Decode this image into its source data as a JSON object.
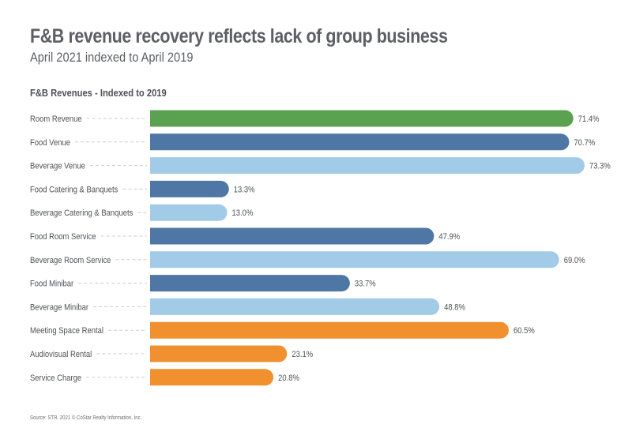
{
  "header": {
    "title": "F&B revenue recovery reflects lack of group business",
    "subtitle": "April 2021 indexed to April 2019"
  },
  "footer": {
    "source": "Source: STR. 2021 © CoStar Realty Information, Inc."
  },
  "colors": {
    "green": "#5aa150",
    "dark_blue": "#4e77a5",
    "light_blue": "#a2cbe8",
    "orange": "#f1902f",
    "leader": "#c8ced4"
  },
  "chart_data": {
    "type": "bar",
    "orientation": "horizontal",
    "title": "F&B Revenues - Indexed to 2019",
    "xlabel": "",
    "ylabel": "",
    "xlim": [
      0,
      73.3
    ],
    "grid": false,
    "legend": "none",
    "categories": [
      "Room Revenue",
      "Food Venue",
      "Beverage Venue",
      "Food Catering & Banquets",
      "Beverage Catering & Banquets",
      "Food Room Service",
      "Beverage Room Service",
      "Food Minibar",
      "Beverage Minibar",
      "Meeting Space Rental",
      "Audiovisual Rental",
      "Service Charge"
    ],
    "values": [
      71.4,
      70.7,
      73.3,
      13.3,
      13.0,
      47.9,
      69.0,
      33.7,
      48.8,
      60.5,
      23.1,
      20.8
    ],
    "data_labels": [
      "71.4%",
      "70.7%",
      "73.3%",
      "13.3%",
      "13.0%",
      "47.9%",
      "69.0%",
      "33.7%",
      "48.8%",
      "60.5%",
      "23.1%",
      "20.8%"
    ],
    "bar_colors": [
      "green",
      "dark_blue",
      "light_blue",
      "dark_blue",
      "light_blue",
      "dark_blue",
      "light_blue",
      "dark_blue",
      "light_blue",
      "orange",
      "orange",
      "orange"
    ]
  }
}
